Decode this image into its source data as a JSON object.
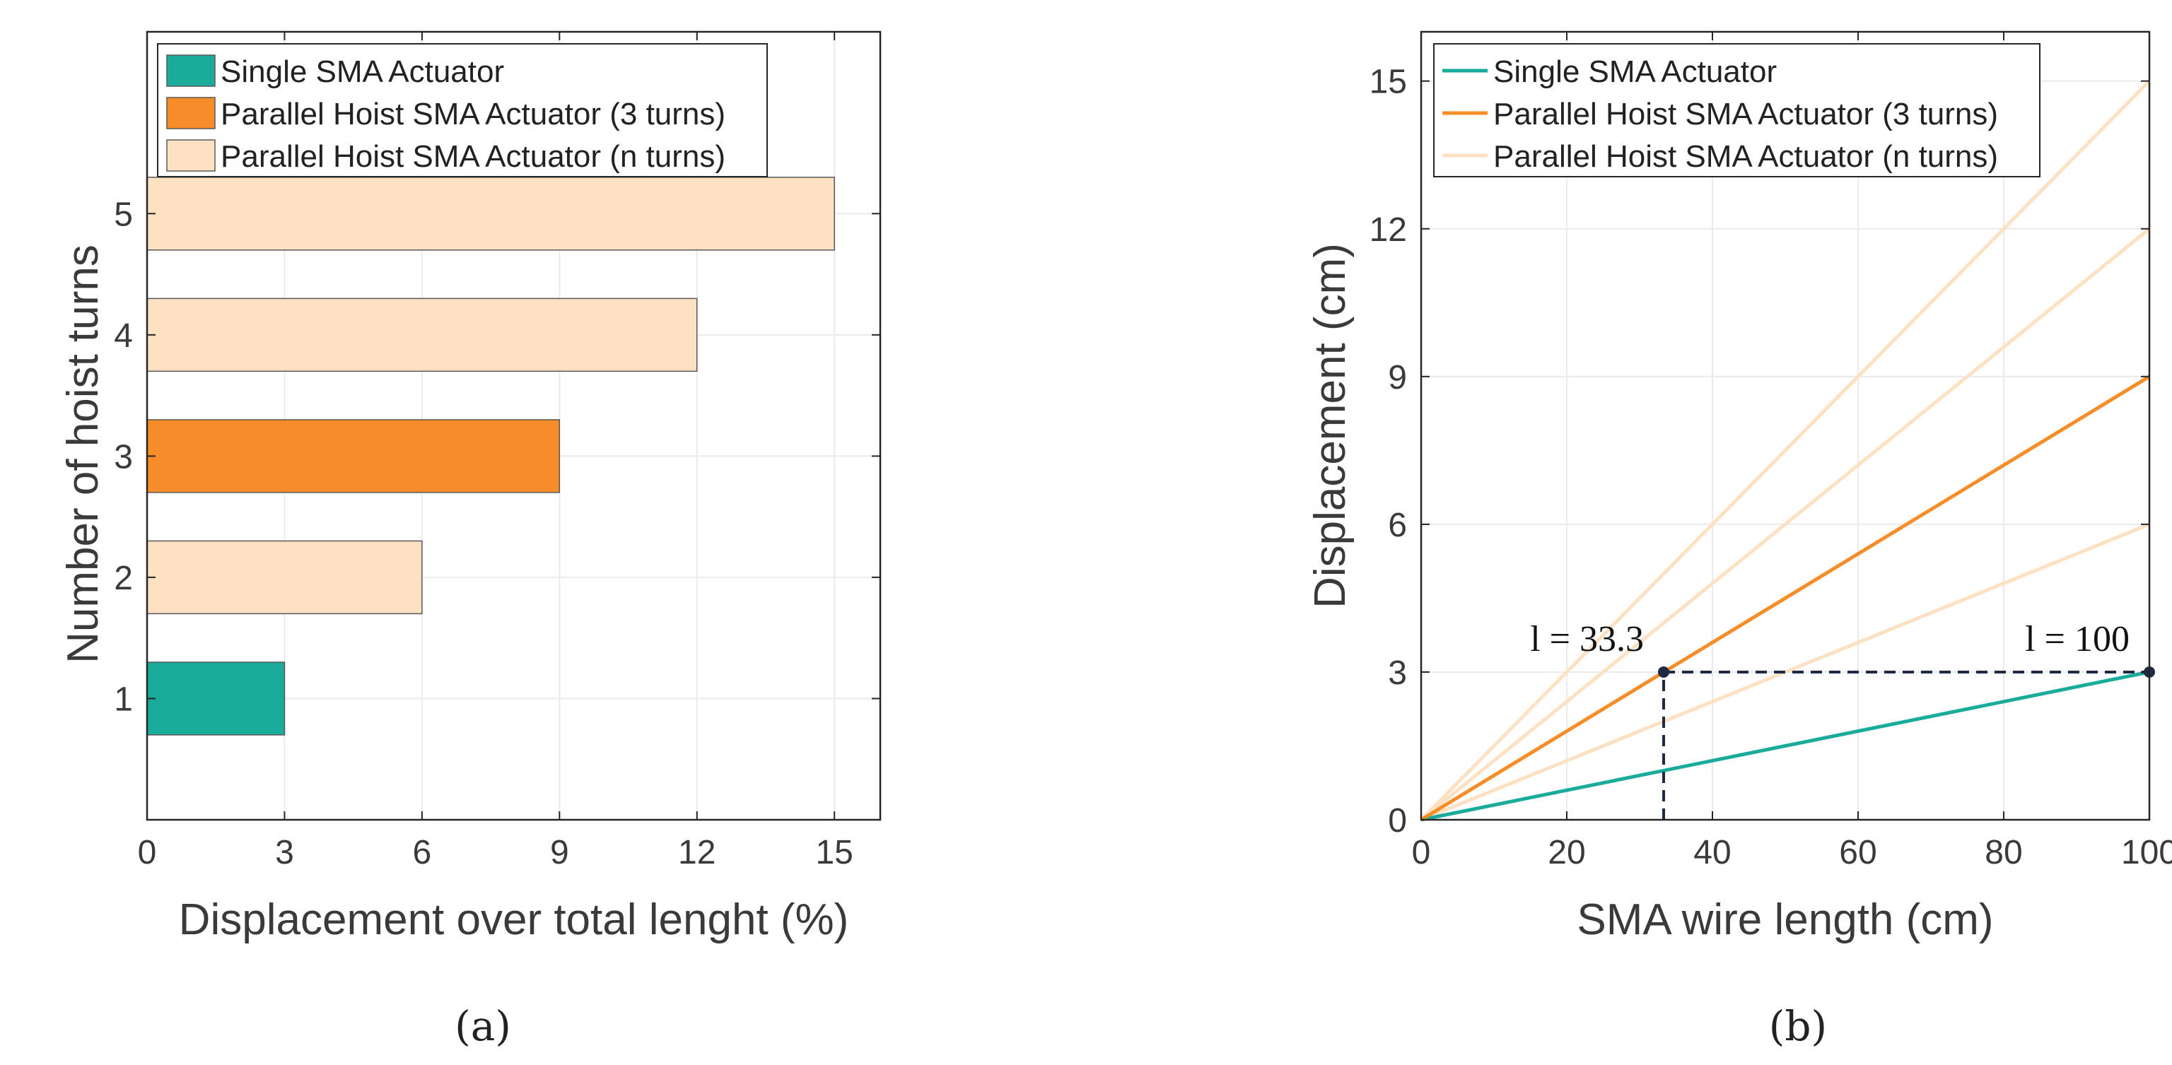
{
  "chart_data": [
    {
      "id": "a",
      "type": "bar",
      "orientation": "horizontal",
      "caption": "(a)",
      "title": "",
      "xlabel": "Displacement over total lenght (%)",
      "ylabel": "Number of hoist turns",
      "xlim": [
        0,
        16
      ],
      "ylim": [
        0,
        6.5
      ],
      "xticks": [
        0,
        3,
        6,
        9,
        12,
        15
      ],
      "yticks": [
        1,
        2,
        3,
        4,
        5
      ],
      "grid": true,
      "legend_position": "top-left",
      "categories": [
        1,
        2,
        3,
        4,
        5
      ],
      "values": [
        3,
        6,
        9,
        12,
        15
      ],
      "bar_series": [
        "Single SMA Actuator",
        "Parallel Hoist SMA Actuator (n turns)",
        "Parallel Hoist SMA Actuator (3 turns)",
        "Parallel Hoist SMA Actuator (n turns)",
        "Parallel Hoist SMA Actuator (n turns)"
      ],
      "legend": [
        {
          "name": "Single SMA Actuator",
          "color": "#1aab9b"
        },
        {
          "name": "Parallel Hoist SMA Actuator (3 turns)",
          "color": "#f68d28"
        },
        {
          "name": "Parallel Hoist SMA Actuator (n turns)",
          "color": "#fde1c2"
        }
      ]
    },
    {
      "id": "b",
      "type": "line",
      "caption": "(b)",
      "title": "",
      "xlabel": "SMA wire length (cm)",
      "ylabel": "Displacement (cm)",
      "xlim": [
        0,
        100
      ],
      "ylim": [
        0,
        16
      ],
      "xticks": [
        0,
        20,
        40,
        60,
        80,
        100
      ],
      "yticks": [
        0,
        3,
        6,
        9,
        12,
        15
      ],
      "grid": true,
      "legend_position": "top-left",
      "series": [
        {
          "name": "Single SMA Actuator",
          "color": "#1aab9b",
          "x": [
            0,
            100
          ],
          "y": [
            0,
            3
          ],
          "in_legend": true
        },
        {
          "name": "Parallel Hoist SMA Actuator (3 turns)",
          "color": "#f68d28",
          "x": [
            0,
            100
          ],
          "y": [
            0,
            9
          ],
          "in_legend": true
        },
        {
          "name": "Parallel Hoist SMA Actuator (n turns)",
          "color": "#fde1c2",
          "x": [
            0,
            100
          ],
          "y": [
            0,
            6
          ],
          "in_legend": true
        },
        {
          "name": "Parallel Hoist SMA Actuator (n turns)",
          "color": "#fde1c2",
          "x": [
            0,
            100
          ],
          "y": [
            0,
            12
          ],
          "in_legend": false
        },
        {
          "name": "Parallel Hoist SMA Actuator (n turns)",
          "color": "#fde1c2",
          "x": [
            0,
            100
          ],
          "y": [
            0,
            15
          ],
          "in_legend": false
        }
      ],
      "annotations": [
        {
          "text": "l = 33.3",
          "x": 33.3,
          "y": 3
        },
        {
          "text": "l = 100",
          "x": 100,
          "y": 3
        }
      ],
      "reference_lines": [
        {
          "style": "dashed",
          "color": "#1f2a44",
          "x": [
            33.3,
            33.3
          ],
          "y": [
            0,
            3
          ]
        },
        {
          "style": "dashed",
          "color": "#1f2a44",
          "x": [
            33.3,
            100
          ],
          "y": [
            3,
            3
          ]
        }
      ]
    }
  ]
}
